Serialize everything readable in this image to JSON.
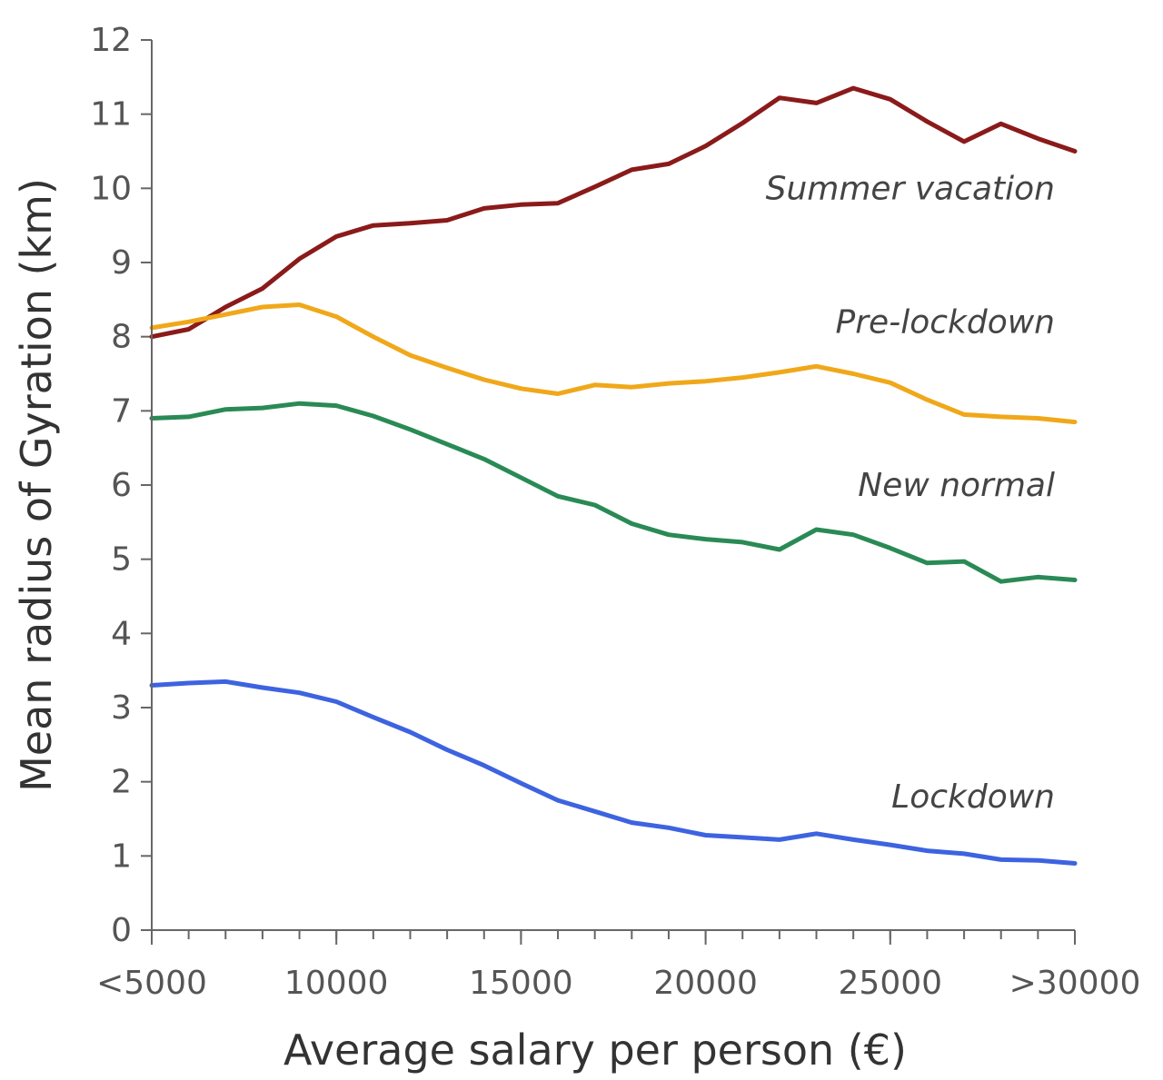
{
  "chart_data": {
    "type": "line",
    "title": "",
    "xlabel": "Average salary per person (€)",
    "ylabel": "Mean radius of Gyration (km)",
    "xlim": [
      5000,
      30000
    ],
    "ylim": [
      0,
      12
    ],
    "grid": false,
    "x_ticks": [
      {
        "value": 5000,
        "label": "<5000"
      },
      {
        "value": 10000,
        "label": "10000"
      },
      {
        "value": 15000,
        "label": "15000"
      },
      {
        "value": 20000,
        "label": "20000"
      },
      {
        "value": 25000,
        "label": "25000"
      },
      {
        "value": 30000,
        "label": ">30000"
      }
    ],
    "y_ticks": [
      {
        "value": 0,
        "label": "0"
      },
      {
        "value": 1,
        "label": "1"
      },
      {
        "value": 2,
        "label": "2"
      },
      {
        "value": 3,
        "label": "3"
      },
      {
        "value": 4,
        "label": "4"
      },
      {
        "value": 5,
        "label": "5"
      },
      {
        "value": 6,
        "label": "6"
      },
      {
        "value": 7,
        "label": "7"
      },
      {
        "value": 8,
        "label": "8"
      },
      {
        "value": 9,
        "label": "9"
      },
      {
        "value": 10,
        "label": "10"
      },
      {
        "value": 11,
        "label": "11"
      },
      {
        "value": 12,
        "label": "12"
      }
    ],
    "x": [
      5000,
      6000,
      7000,
      8000,
      9000,
      10000,
      11000,
      12000,
      13000,
      14000,
      15000,
      16000,
      17000,
      18000,
      19000,
      20000,
      21000,
      22000,
      23000,
      24000,
      25000,
      26000,
      27000,
      28000,
      29000,
      30000
    ],
    "series": [
      {
        "name": "Summer vacation",
        "color": "#8b1a1a",
        "label_anchor_value": {
          "x": 30000,
          "y": 10.0
        },
        "values": [
          8.0,
          8.1,
          8.4,
          8.65,
          9.05,
          9.35,
          9.5,
          9.53,
          9.57,
          9.73,
          9.78,
          9.8,
          10.02,
          10.25,
          10.33,
          10.57,
          10.88,
          11.22,
          11.15,
          11.35,
          11.2,
          10.9,
          10.63,
          10.87,
          10.67,
          10.5
        ]
      },
      {
        "name": "Pre-lockdown",
        "color": "#f0a81a",
        "label_anchor_value": {
          "x": 30000,
          "y": 8.2
        },
        "values": [
          8.12,
          8.2,
          8.3,
          8.4,
          8.43,
          8.27,
          8.0,
          7.75,
          7.58,
          7.42,
          7.3,
          7.23,
          7.35,
          7.32,
          7.37,
          7.4,
          7.45,
          7.52,
          7.6,
          7.5,
          7.38,
          7.15,
          6.95,
          6.92,
          6.9,
          6.85
        ]
      },
      {
        "name": "New normal",
        "color": "#2a8a55",
        "label_anchor_value": {
          "x": 30000,
          "y": 6.0
        },
        "values": [
          6.9,
          6.92,
          7.02,
          7.04,
          7.1,
          7.07,
          6.93,
          6.75,
          6.55,
          6.35,
          6.1,
          5.85,
          5.73,
          5.48,
          5.33,
          5.27,
          5.23,
          5.13,
          5.4,
          5.33,
          5.15,
          4.95,
          4.97,
          4.7,
          4.76,
          4.72
        ]
      },
      {
        "name": "Lockdown",
        "color": "#3d63e0",
        "label_anchor_value": {
          "x": 30000,
          "y": 1.8
        },
        "values": [
          3.3,
          3.33,
          3.35,
          3.27,
          3.2,
          3.08,
          2.87,
          2.67,
          2.43,
          2.22,
          1.98,
          1.75,
          1.6,
          1.45,
          1.38,
          1.28,
          1.25,
          1.22,
          1.3,
          1.22,
          1.15,
          1.07,
          1.03,
          0.95,
          0.94,
          0.9
        ]
      }
    ]
  }
}
